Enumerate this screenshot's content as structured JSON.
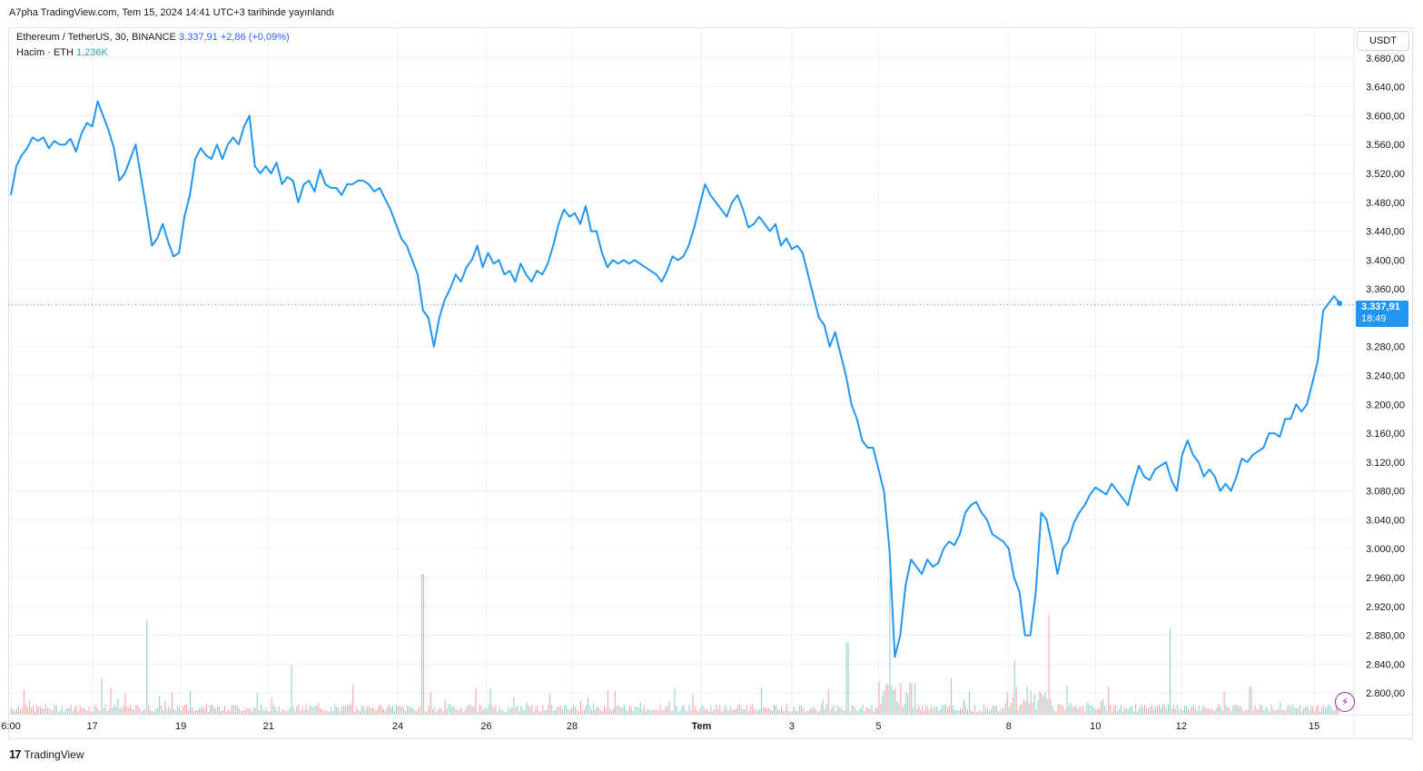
{
  "caption": "A7pha TradingView.com, Tem 15, 2024 14:41 UTC+3 tarihinde yayınlandı",
  "legend": {
    "symbol": "Ethereum / TetherUS, 30, BINANCE",
    "last": "3.337,91",
    "change": "+2,86 (+0,09%)",
    "volume_label": "Hacim · ETH",
    "volume_value": "1,236K"
  },
  "currency_button": "USDT",
  "price_tag": {
    "price": "3.337,91",
    "countdown": "18:49"
  },
  "brand": {
    "logo": "17",
    "name": "TradingView"
  },
  "colors": {
    "line": "#2196f3",
    "vol_up": "#26a69a",
    "vol_down": "#ef5350",
    "grid": "#eef0f3",
    "bolt": "#9c27b0"
  },
  "icons": {
    "bolt": "lightning-icon",
    "logo": "tradingview-logo-icon"
  },
  "chart_data": {
    "type": "line",
    "title": "Ethereum / TetherUS, 30, BINANCE",
    "xlabel": "",
    "ylabel": "",
    "ylim": [
      2770,
      3710
    ],
    "x_tick_labels": [
      "6:00",
      "17",
      "19",
      "21",
      "24",
      "26",
      "28",
      "Tem",
      "3",
      "5",
      "8",
      "10",
      "12",
      "15"
    ],
    "x_tick_index": [
      0,
      90,
      188,
      285,
      428,
      526,
      621,
      764,
      864,
      960,
      1104,
      1200,
      1295,
      1442
    ],
    "y_tick_labels": [
      "3.680,00",
      "3.640,00",
      "3.600,00",
      "3.560,00",
      "3.520,00",
      "3.480,00",
      "3.440,00",
      "3.400,00",
      "3.360,00",
      "3.280,00",
      "3.240,00",
      "3.200,00",
      "3.160,00",
      "3.120,00",
      "3.080,00",
      "3.040,00",
      "3.000,00",
      "2.960,00",
      "2.920,00",
      "2.880,00",
      "2.840,00",
      "2.800,00"
    ],
    "y_tick_values": [
      3680,
      3640,
      3600,
      3560,
      3520,
      3480,
      3440,
      3400,
      3360,
      3280,
      3240,
      3200,
      3160,
      3120,
      3080,
      3040,
      3000,
      2960,
      2920,
      2880,
      2840,
      2800
    ],
    "last_price": 3337.91,
    "grid": true,
    "series": [
      {
        "x": [
          0,
          6,
          12,
          18,
          24,
          30,
          36,
          42,
          48,
          54,
          60,
          66,
          72,
          78,
          84,
          90,
          96,
          102,
          108,
          114,
          120,
          126,
          132,
          138,
          144,
          150,
          156,
          162,
          168,
          174,
          180,
          186,
          192,
          198,
          204,
          210,
          216,
          222,
          228,
          234,
          240,
          246,
          252,
          258,
          264,
          270,
          276,
          282,
          288,
          294,
          300,
          306,
          312,
          318,
          324,
          330,
          336,
          342,
          348,
          354,
          360,
          366,
          372,
          378,
          384,
          390,
          396,
          402,
          408,
          414,
          420,
          426,
          432,
          438,
          444,
          450,
          456,
          462,
          468,
          474,
          480,
          486,
          492,
          498,
          504,
          510,
          516,
          522,
          528,
          534,
          540,
          546,
          552,
          558,
          564,
          570,
          576,
          582,
          588,
          594,
          600,
          606,
          612,
          618,
          624,
          630,
          636,
          642,
          648,
          654,
          660,
          666,
          672,
          678,
          684,
          690,
          696,
          702,
          708,
          714,
          720,
          726,
          732,
          738,
          744,
          750,
          756,
          762,
          768,
          774,
          780,
          786,
          792,
          798,
          804,
          810,
          816,
          822,
          828,
          834,
          840,
          846,
          852,
          858,
          864,
          870,
          876,
          882,
          888,
          894,
          900,
          906,
          912,
          918,
          924,
          930,
          936,
          942,
          948,
          954,
          960,
          966,
          972,
          978,
          984,
          990,
          996,
          1002,
          1008,
          1014,
          1020,
          1026,
          1032,
          1038,
          1044,
          1050,
          1056,
          1062,
          1068,
          1074,
          1080,
          1086,
          1092,
          1098,
          1104,
          1110,
          1116,
          1122,
          1128,
          1134,
          1140,
          1146,
          1152,
          1158,
          1164,
          1170,
          1176,
          1182,
          1188,
          1194,
          1200,
          1206,
          1212,
          1218,
          1224,
          1230,
          1236,
          1242,
          1248,
          1254,
          1260,
          1266,
          1272,
          1278,
          1284,
          1290,
          1296,
          1302,
          1308,
          1314,
          1320,
          1326,
          1332,
          1338,
          1344,
          1350,
          1356,
          1362,
          1368,
          1374,
          1380,
          1386,
          1392,
          1398,
          1404,
          1410,
          1416,
          1422,
          1428,
          1434,
          1440,
          1446,
          1452,
          1458,
          1464,
          1470
        ],
        "y": [
          3490,
          3530,
          3545,
          3555,
          3570,
          3565,
          3570,
          3555,
          3565,
          3560,
          3560,
          3568,
          3550,
          3575,
          3590,
          3585,
          3620,
          3600,
          3580,
          3555,
          3510,
          3520,
          3540,
          3560,
          3515,
          3470,
          3420,
          3430,
          3450,
          3425,
          3405,
          3410,
          3460,
          3490,
          3540,
          3555,
          3545,
          3540,
          3560,
          3540,
          3560,
          3570,
          3560,
          3585,
          3600,
          3530,
          3520,
          3530,
          3520,
          3535,
          3505,
          3515,
          3510,
          3480,
          3505,
          3510,
          3495,
          3525,
          3505,
          3500,
          3500,
          3490,
          3505,
          3505,
          3510,
          3510,
          3505,
          3495,
          3500,
          3485,
          3470,
          3450,
          3430,
          3420,
          3400,
          3380,
          3330,
          3320,
          3280,
          3320,
          3345,
          3360,
          3380,
          3370,
          3390,
          3400,
          3420,
          3390,
          3410,
          3395,
          3400,
          3380,
          3385,
          3370,
          3395,
          3380,
          3370,
          3385,
          3380,
          3395,
          3420,
          3450,
          3470,
          3460,
          3465,
          3450,
          3475,
          3440,
          3440,
          3410,
          3390,
          3400,
          3395,
          3400,
          3395,
          3400,
          3395,
          3390,
          3385,
          3380,
          3370,
          3385,
          3405,
          3400,
          3405,
          3420,
          3445,
          3475,
          3505,
          3490,
          3480,
          3470,
          3460,
          3480,
          3490,
          3470,
          3445,
          3450,
          3460,
          3450,
          3440,
          3450,
          3420,
          3430,
          3415,
          3420,
          3410,
          3380,
          3350,
          3320,
          3310,
          3280,
          3300,
          3270,
          3240,
          3200,
          3180,
          3150,
          3140,
          3140,
          3110,
          3080,
          3000,
          2850,
          2880,
          2950,
          2985,
          2975,
          2965,
          2985,
          2975,
          2980,
          3000,
          3010,
          3005,
          3020,
          3050,
          3060,
          3065,
          3050,
          3040,
          3020,
          3015,
          3010,
          3000,
          2960,
          2940,
          2880,
          2880,
          2940,
          3050,
          3040,
          3005,
          2965,
          3000,
          3010,
          3035,
          3050,
          3060,
          3075,
          3085,
          3080,
          3075,
          3090,
          3080,
          3070,
          3060,
          3090,
          3115,
          3100,
          3095,
          3110,
          3115,
          3120,
          3095,
          3080,
          3130,
          3150,
          3130,
          3120,
          3100,
          3110,
          3100,
          3080,
          3090,
          3080,
          3100,
          3125,
          3120,
          3130,
          3135,
          3140,
          3160,
          3160,
          3155,
          3180,
          3180,
          3200,
          3190,
          3200,
          3230,
          3260,
          3330,
          3340,
          3350,
          3340
        ]
      }
    ]
  }
}
